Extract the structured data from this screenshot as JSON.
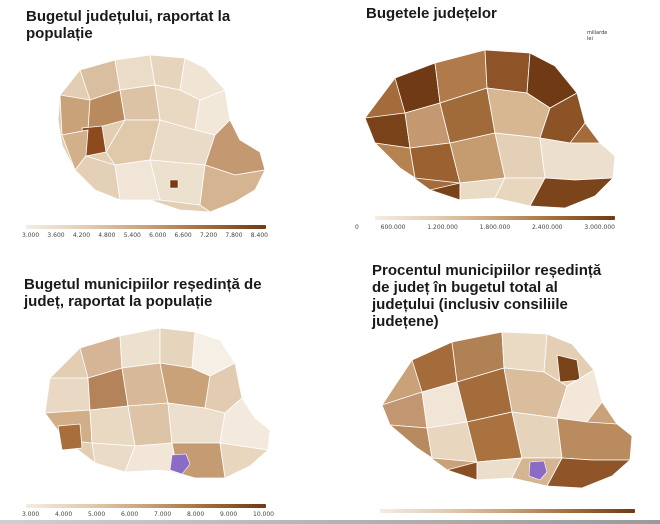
{
  "panels": [
    {
      "title": "Bugetul județului, raportat la populație",
      "units": "",
      "legend_ticks": [
        "3.000",
        "3.600",
        "4.200",
        "4.800",
        "5.400",
        "6.000",
        "6.600",
        "7.200",
        "7.800",
        "8.400"
      ],
      "highlight": "none"
    },
    {
      "title": "Bugetele județelor",
      "units": "miliarde lei",
      "legend_ticks": [
        "0",
        "600.000",
        "1.200.000",
        "1.800.000",
        "2.400.000",
        "3.000.000"
      ],
      "highlight": "none"
    },
    {
      "title": "Bugetul municipiilor reședință de județ, raportat la populație",
      "units": "",
      "legend_ticks": [
        "3.000",
        "4.000",
        "5.000",
        "6.000",
        "7.000",
        "8.000",
        "9.000",
        "10.000"
      ],
      "highlight": "bucharest-purple"
    },
    {
      "title": "Procentul municipiilor reședință de județ în bugetul total al județului (inclusiv consiliile județene)",
      "units": "",
      "legend_ticks": [],
      "highlight": "bucharest-purple"
    }
  ],
  "colors": {
    "lightest": "#f4ece2",
    "light": "#e3cdb3",
    "mid": "#c9a27a",
    "dark": "#a36c3a",
    "darkest": "#6f3a14",
    "bucharest": "#8a6cc7"
  }
}
